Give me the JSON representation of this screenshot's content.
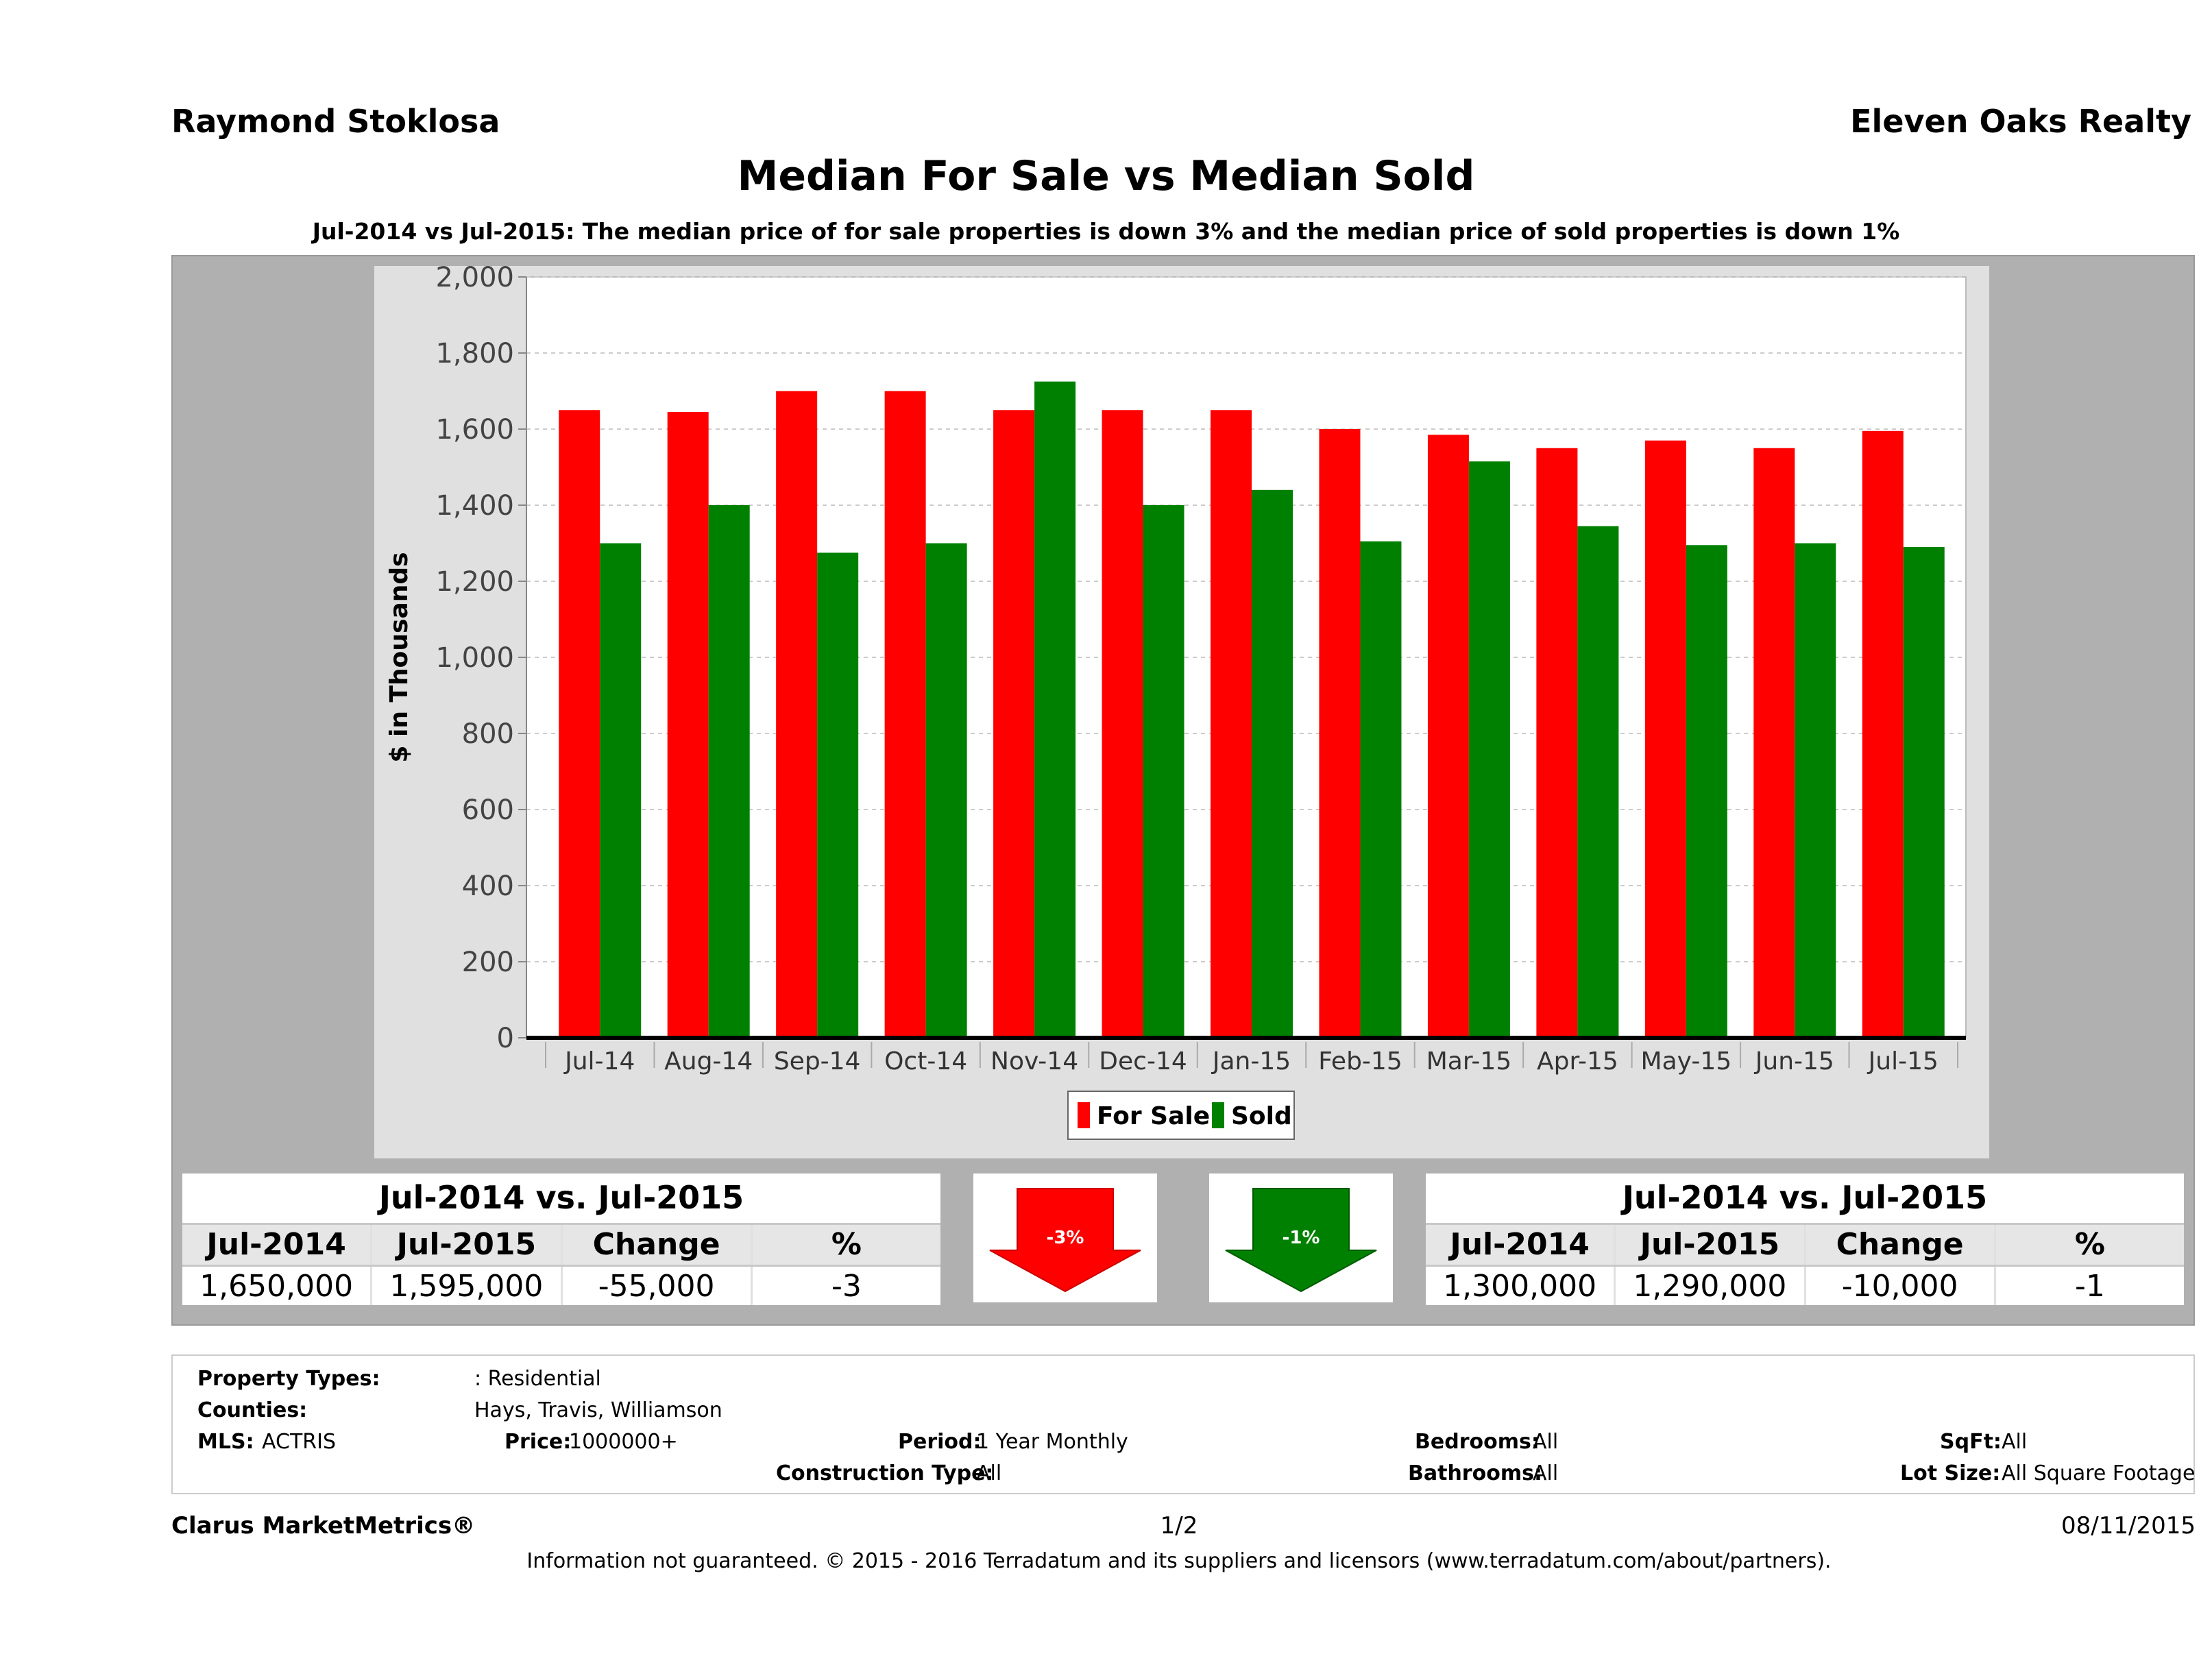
{
  "header": {
    "agent": "Raymond Stoklosa",
    "company": "Eleven Oaks Realty",
    "title": "Median For Sale vs Median Sold",
    "subtitle": "Jul-2014 vs Jul-2015: The median price of for sale properties is down 3% and the median price of sold properties is down 1%"
  },
  "chart_data": {
    "type": "bar",
    "categories": [
      "Jul-14",
      "Aug-14",
      "Sep-14",
      "Oct-14",
      "Nov-14",
      "Dec-14",
      "Jan-15",
      "Feb-15",
      "Mar-15",
      "Apr-15",
      "May-15",
      "Jun-15",
      "Jul-15"
    ],
    "series": [
      {
        "name": "For Sale",
        "color": "#ff0000",
        "values": [
          1650,
          1645,
          1700,
          1700,
          1650,
          1650,
          1650,
          1600,
          1585,
          1550,
          1570,
          1550,
          1595
        ]
      },
      {
        "name": "Sold",
        "color": "#008000",
        "values": [
          1300,
          1400,
          1275,
          1300,
          1725,
          1400,
          1440,
          1305,
          1515,
          1345,
          1295,
          1300,
          1290
        ]
      }
    ],
    "ylabel": "$ in Thousands",
    "ylim": [
      0,
      2000
    ],
    "yticks": [
      0,
      200,
      400,
      600,
      800,
      1000,
      1200,
      1400,
      1600,
      1800,
      2000
    ],
    "grid": true,
    "legend_position": "bottom"
  },
  "for_sale_stats": {
    "title": "Jul-2014 vs. Jul-2015",
    "headers": [
      "Jul-2014",
      "Jul-2015",
      "Change",
      "%"
    ],
    "values": [
      "1,650,000",
      "1,595,000",
      "-55,000",
      "-3"
    ],
    "arrow_label": "-3%",
    "arrow_color": "#ff0000"
  },
  "sold_stats": {
    "title": "Jul-2014 vs. Jul-2015",
    "headers": [
      "Jul-2014",
      "Jul-2015",
      "Change",
      "%"
    ],
    "values": [
      "1,300,000",
      "1,290,000",
      "-10,000",
      "-1"
    ],
    "arrow_label": "-1%",
    "arrow_color": "#008000"
  },
  "criteria": {
    "property_types_label": "Property Types:",
    "property_types_value": ": Residential",
    "counties_label": "Counties:",
    "counties_value": "Hays, Travis, Williamson",
    "mls_label": "MLS:",
    "mls_value": "ACTRIS",
    "price_label": "Price:",
    "price_value": "1000000+",
    "period_label": "Period:",
    "period_value": "1 Year Monthly",
    "construction_label": "Construction Type:",
    "construction_value": "All",
    "bedrooms_label": "Bedrooms:",
    "bedrooms_value": "All",
    "bathrooms_label": "Bathrooms:",
    "bathrooms_value": "All",
    "sqft_label": "SqFt:",
    "sqft_value": "All",
    "lot_label": "Lot Size:",
    "lot_value": "All Square Footage"
  },
  "footer": {
    "brand": "Clarus MarketMetrics®",
    "page": "1/2",
    "date": "08/11/2015",
    "disclaimer": "Information not guaranteed. © 2015 - 2016 Terradatum and its suppliers and licensors (www.terradatum.com/about/partners)."
  }
}
